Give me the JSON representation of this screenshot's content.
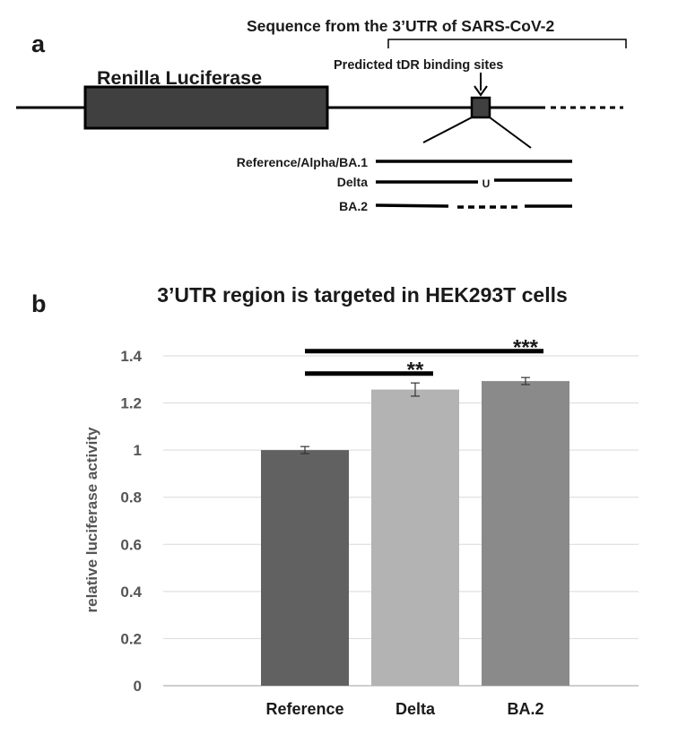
{
  "panel_a": {
    "letter": "a",
    "heading": "Sequence from the  3’UTR of SARS-CoV-2",
    "gene_label": "Renilla Luciferase",
    "site_label": "Predicted tDR binding sites",
    "variants": [
      {
        "label": "Reference/Alpha/BA.1",
        "pattern": "full"
      },
      {
        "label": "Delta",
        "pattern": "substitution",
        "marker": "U"
      },
      {
        "label": "BA.2",
        "pattern": "deletion"
      }
    ],
    "colors": {
      "gene_box": "#404040",
      "site_box": "#404040",
      "line": "#000000"
    }
  },
  "panel_b": {
    "letter": "b"
  },
  "chart_data": {
    "type": "bar",
    "title": "3’UTR  region is targeted in HEK293T cells",
    "xlabel": "",
    "ylabel": "relative luciferase activity",
    "categories": [
      "Reference",
      "Delta",
      "BA.2"
    ],
    "values": [
      1.0,
      1.257,
      1.293
    ],
    "errors": [
      0.015,
      0.028,
      0.015
    ],
    "colors": [
      "#616161",
      "#b3b3b3",
      "#8a8a8a"
    ],
    "ylim": [
      0,
      1.4
    ],
    "yticks": [
      0,
      0.2,
      0.4,
      0.6,
      0.8,
      1,
      1.2,
      1.4
    ],
    "ytick_labels": [
      "0",
      "0.2",
      "0.4",
      "0.6",
      "0.8",
      "1",
      "1.2",
      "1.4"
    ],
    "grid": true,
    "significance": [
      {
        "from": "Reference",
        "to": "Delta",
        "label": "**",
        "y": 1.325
      },
      {
        "from": "Reference",
        "to": "BA.2",
        "label": "***",
        "y": 1.42
      }
    ]
  }
}
